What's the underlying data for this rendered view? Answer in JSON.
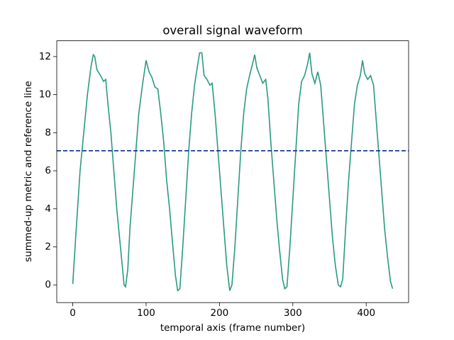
{
  "chart_data": {
    "type": "line",
    "title": "overall signal waveform",
    "x_label": "temporal axis (frame number)",
    "y_label": "summed-up metric and reference line",
    "xlim": [
      -21.8,
      457.8
    ],
    "ylim": [
      -0.93,
      12.83
    ],
    "xticks": [
      0,
      100,
      200,
      300,
      400
    ],
    "yticks": [
      0,
      2,
      4,
      6,
      8,
      10,
      12
    ],
    "reference_line": {
      "value": 7.05,
      "color": "#0a2a9c"
    },
    "series": [
      {
        "color": "#2a9a80",
        "x": [
          0,
          4,
          10,
          15,
          20,
          25,
          28,
          30,
          33,
          38,
          42,
          45,
          48,
          52,
          55,
          60,
          65,
          68,
          70,
          72,
          75,
          78,
          82,
          86,
          90,
          95,
          100,
          104,
          108,
          112,
          116,
          120,
          124,
          128,
          132,
          136,
          140,
          143,
          146,
          150,
          154,
          158,
          162,
          166,
          170,
          173,
          176,
          179,
          183,
          187,
          190,
          194,
          198,
          202,
          206,
          210,
          214,
          217,
          221,
          225,
          229,
          233,
          237,
          241,
          245,
          248,
          251,
          255,
          259,
          263,
          266,
          270,
          274,
          278,
          282,
          286,
          289,
          292,
          296,
          300,
          304,
          308,
          312,
          316,
          320,
          323,
          326,
          330,
          334,
          338,
          342,
          346,
          350,
          354,
          358,
          362,
          365,
          368,
          372,
          376,
          380,
          384,
          388,
          392,
          395,
          398,
          402,
          406,
          410,
          413,
          417,
          421,
          425,
          429,
          433,
          436
        ],
        "values": [
          0.05,
          2.5,
          6,
          8,
          10,
          11.5,
          12.1,
          12,
          11.3,
          11,
          10.7,
          10.8,
          9.5,
          8,
          6.5,
          4,
          2,
          0.8,
          0,
          -0.1,
          0.8,
          3,
          5,
          7,
          9,
          10.5,
          11.8,
          11.2,
          10.9,
          10.4,
          10.3,
          9,
          7.5,
          5.5,
          4,
          2.2,
          0.5,
          -0.3,
          -0.2,
          2,
          4.5,
          7,
          9,
          10.5,
          11.5,
          12.2,
          12.2,
          11,
          10.8,
          10.5,
          10.6,
          9,
          7,
          5,
          3,
          1,
          -0.3,
          0,
          2,
          4.5,
          7,
          9,
          10.3,
          11,
          11.6,
          12.1,
          11.4,
          11,
          10.6,
          10.8,
          9.8,
          7.5,
          5.5,
          3.5,
          1.8,
          0.3,
          -0.2,
          -0.1,
          2,
          4.5,
          7,
          9.5,
          10.7,
          11,
          11.6,
          12.2,
          11.1,
          10.6,
          11.2,
          10.5,
          8.5,
          6.5,
          4.5,
          2.5,
          1,
          0,
          -0.1,
          0.3,
          3,
          5.5,
          7.5,
          9.5,
          10.5,
          11,
          11.8,
          11.1,
          10.8,
          11,
          10.5,
          9,
          7,
          5,
          3,
          1.5,
          0.2,
          -0.2
        ]
      }
    ]
  }
}
